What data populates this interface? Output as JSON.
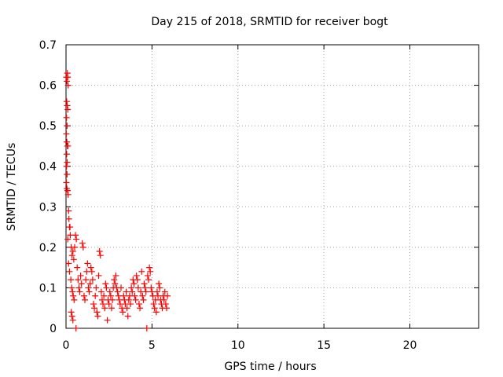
{
  "chart_data": {
    "type": "scatter",
    "title": "Day 215 of 2018, SRMTID for receiver bogt",
    "xlabel": "GPS time / hours",
    "ylabel": "SRMTID / TECUs",
    "xlim": [
      0,
      24
    ],
    "ylim": [
      0,
      0.7
    ],
    "xticks": [
      0,
      5,
      10,
      15,
      20
    ],
    "yticks": [
      0,
      0.1,
      0.2,
      0.3,
      0.4,
      0.5,
      0.6,
      0.7
    ],
    "xtick_labels": [
      "0",
      "5",
      "10",
      "15",
      "20"
    ],
    "ytick_labels": [
      "0",
      "0.1",
      "0.2",
      "0.3",
      "0.4",
      "0.5",
      "0.6",
      "0.7"
    ],
    "grid": true,
    "marker": "+",
    "marker_color": "#ff0000",
    "series": [
      {
        "name": "SRMTID",
        "points": [
          [
            0.02,
            0.62
          ],
          [
            0.05,
            0.61
          ],
          [
            0.08,
            0.63
          ],
          [
            0.1,
            0.62
          ],
          [
            0.12,
            0.6
          ],
          [
            0.04,
            0.56
          ],
          [
            0.07,
            0.55
          ],
          [
            0.1,
            0.54
          ],
          [
            0.03,
            0.52
          ],
          [
            0.06,
            0.5
          ],
          [
            0.02,
            0.48
          ],
          [
            0.05,
            0.46
          ],
          [
            0.08,
            0.45
          ],
          [
            0.11,
            0.45
          ],
          [
            0.04,
            0.43
          ],
          [
            0.07,
            0.41
          ],
          [
            0.03,
            0.4
          ],
          [
            0.06,
            0.38
          ],
          [
            0.02,
            0.36
          ],
          [
            0.05,
            0.345
          ],
          [
            0.09,
            0.34
          ],
          [
            0.12,
            0.33
          ],
          [
            0.15,
            0.29
          ],
          [
            0.17,
            0.27
          ],
          [
            0.2,
            0.25
          ],
          [
            0.23,
            0.25
          ],
          [
            0.1,
            0.22
          ],
          [
            0.25,
            0.23
          ],
          [
            0.3,
            0.2
          ],
          [
            0.35,
            0.18
          ],
          [
            0.4,
            0.19
          ],
          [
            0.45,
            0.17
          ],
          [
            0.5,
            0.2
          ],
          [
            0.55,
            0.23
          ],
          [
            0.6,
            0.22
          ],
          [
            0.15,
            0.16
          ],
          [
            0.2,
            0.14
          ],
          [
            0.28,
            0.12
          ],
          [
            0.33,
            0.1
          ],
          [
            0.38,
            0.09
          ],
          [
            0.42,
            0.08
          ],
          [
            0.47,
            0.07
          ],
          [
            0.3,
            0.04
          ],
          [
            0.35,
            0.03
          ],
          [
            0.4,
            0.02
          ],
          [
            0.58,
            0.0
          ],
          [
            0.65,
            0.15
          ],
          [
            0.7,
            0.12
          ],
          [
            0.75,
            0.1
          ],
          [
            0.8,
            0.09
          ],
          [
            0.85,
            0.13
          ],
          [
            0.9,
            0.11
          ],
          [
            0.95,
            0.21
          ],
          [
            1.0,
            0.2
          ],
          [
            1.05,
            0.08
          ],
          [
            1.1,
            0.07
          ],
          [
            1.15,
            0.12
          ],
          [
            1.2,
            0.14
          ],
          [
            1.25,
            0.16
          ],
          [
            1.3,
            0.1
          ],
          [
            1.35,
            0.09
          ],
          [
            1.4,
            0.11
          ],
          [
            1.45,
            0.15
          ],
          [
            1.5,
            0.14
          ],
          [
            1.55,
            0.12
          ],
          [
            1.6,
            0.06
          ],
          [
            1.65,
            0.05
          ],
          [
            1.7,
            0.08
          ],
          [
            1.75,
            0.1
          ],
          [
            1.8,
            0.04
          ],
          [
            1.85,
            0.03
          ],
          [
            1.9,
            0.13
          ],
          [
            1.95,
            0.19
          ],
          [
            2.0,
            0.18
          ],
          [
            2.05,
            0.09
          ],
          [
            2.1,
            0.07
          ],
          [
            2.15,
            0.06
          ],
          [
            2.2,
            0.08
          ],
          [
            2.25,
            0.05
          ],
          [
            2.3,
            0.11
          ],
          [
            2.35,
            0.1
          ],
          [
            2.4,
            0.02
          ],
          [
            2.45,
            0.07
          ],
          [
            2.5,
            0.06
          ],
          [
            2.55,
            0.09
          ],
          [
            2.6,
            0.08
          ],
          [
            2.65,
            0.05
          ],
          [
            2.7,
            0.07
          ],
          [
            2.75,
            0.1
          ],
          [
            2.8,
            0.12
          ],
          [
            2.85,
            0.11
          ],
          [
            2.9,
            0.13
          ],
          [
            2.95,
            0.1
          ],
          [
            3.0,
            0.09
          ],
          [
            3.05,
            0.08
          ],
          [
            3.1,
            0.07
          ],
          [
            3.15,
            0.06
          ],
          [
            3.2,
            0.1
          ],
          [
            3.25,
            0.05
          ],
          [
            3.3,
            0.04
          ],
          [
            3.35,
            0.08
          ],
          [
            3.4,
            0.07
          ],
          [
            3.45,
            0.06
          ],
          [
            3.5,
            0.09
          ],
          [
            3.55,
            0.05
          ],
          [
            3.6,
            0.03
          ],
          [
            3.65,
            0.07
          ],
          [
            3.7,
            0.08
          ],
          [
            3.75,
            0.06
          ],
          [
            3.8,
            0.1
          ],
          [
            3.85,
            0.09
          ],
          [
            3.9,
            0.12
          ],
          [
            3.95,
            0.11
          ],
          [
            4.0,
            0.08
          ],
          [
            4.05,
            0.07
          ],
          [
            4.1,
            0.13
          ],
          [
            4.15,
            0.12
          ],
          [
            4.2,
            0.1
          ],
          [
            4.25,
            0.06
          ],
          [
            4.3,
            0.05
          ],
          [
            4.35,
            0.09
          ],
          [
            4.4,
            0.14
          ],
          [
            4.45,
            0.08
          ],
          [
            4.5,
            0.07
          ],
          [
            4.55,
            0.11
          ],
          [
            4.6,
            0.1
          ],
          [
            4.65,
            0.09
          ],
          [
            4.7,
            0.0
          ],
          [
            4.75,
            0.13
          ],
          [
            4.8,
            0.12
          ],
          [
            4.85,
            0.15
          ],
          [
            4.9,
            0.14
          ],
          [
            4.95,
            0.1
          ],
          [
            5.0,
            0.09
          ],
          [
            5.05,
            0.08
          ],
          [
            5.1,
            0.06
          ],
          [
            5.15,
            0.05
          ],
          [
            5.2,
            0.07
          ],
          [
            5.25,
            0.04
          ],
          [
            5.3,
            0.09
          ],
          [
            5.35,
            0.08
          ],
          [
            5.4,
            0.11
          ],
          [
            5.45,
            0.1
          ],
          [
            5.5,
            0.07
          ],
          [
            5.55,
            0.06
          ],
          [
            5.6,
            0.05
          ],
          [
            5.65,
            0.08
          ],
          [
            5.7,
            0.07
          ],
          [
            5.75,
            0.09
          ],
          [
            5.8,
            0.06
          ],
          [
            5.85,
            0.05
          ],
          [
            5.9,
            0.08
          ]
        ]
      }
    ]
  }
}
